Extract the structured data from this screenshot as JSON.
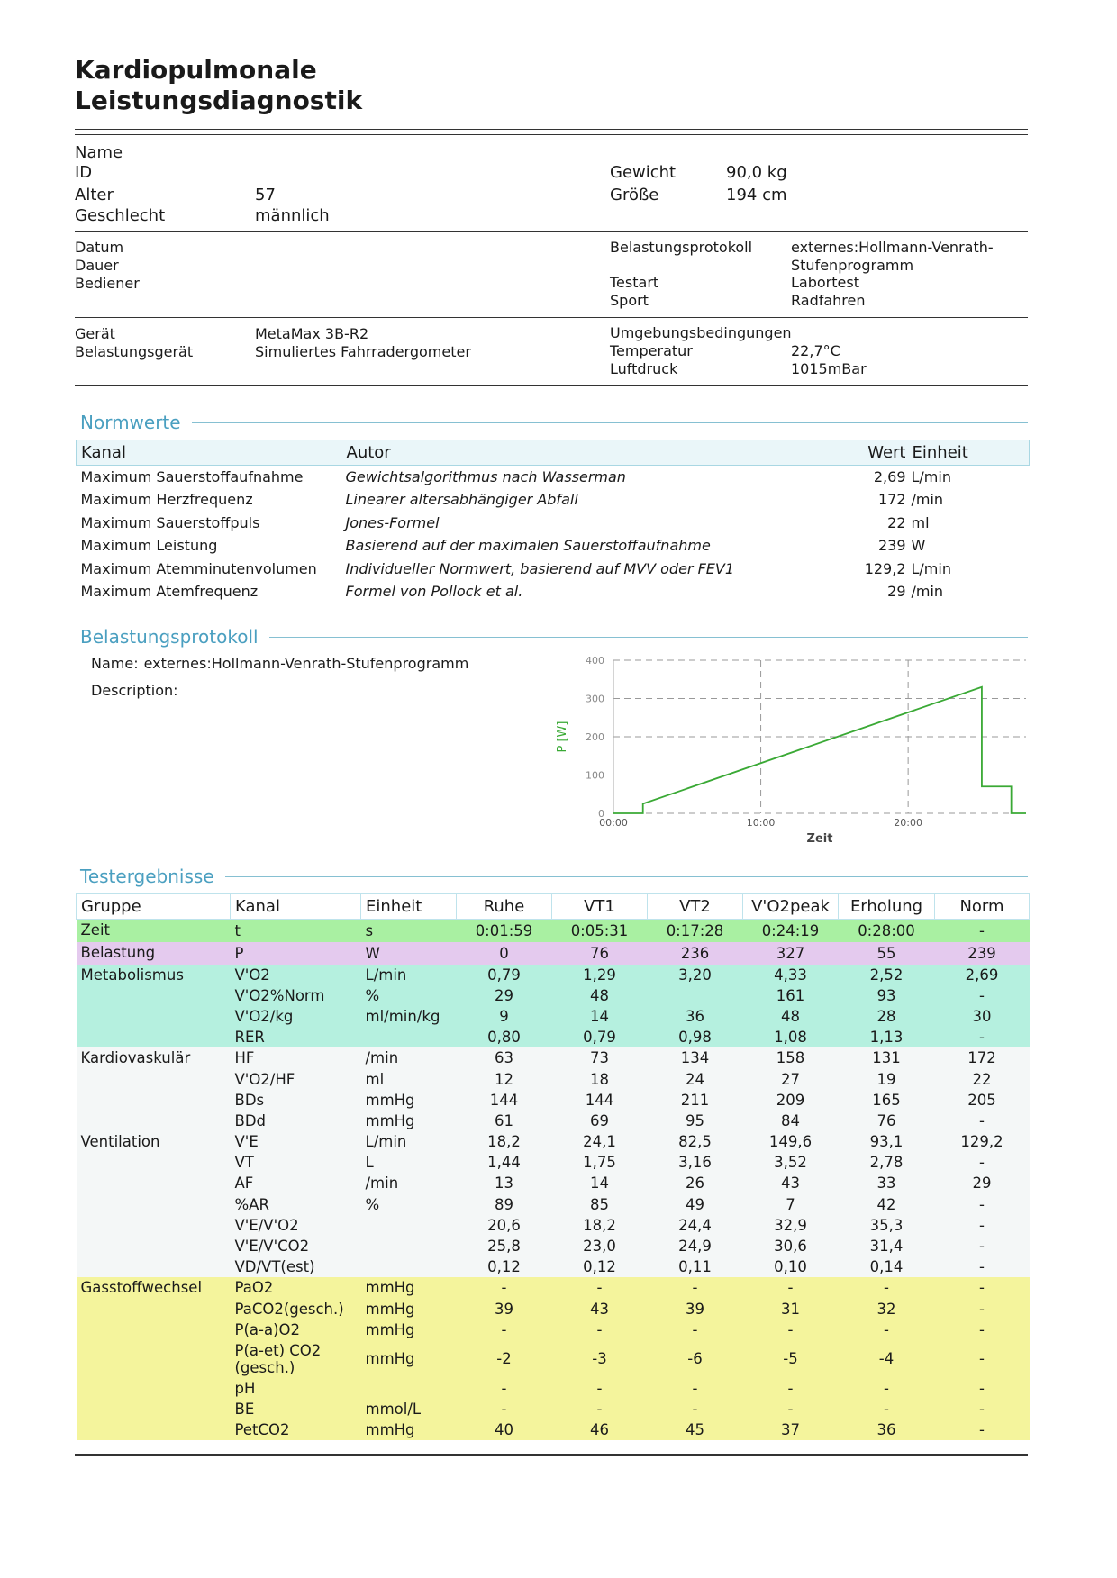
{
  "header": {
    "title_lines": [
      "Kardiopulmonale",
      "Leistungsdiagnostik"
    ]
  },
  "patient": {
    "left": [
      {
        "label": "Name"
      },
      {
        "label": "ID"
      },
      {
        "label": "Alter",
        "value": "57"
      },
      {
        "label": "Geschlecht",
        "value": "männlich"
      }
    ],
    "right": [
      {
        "label": "Gewicht",
        "value": "90,0 kg"
      },
      {
        "label": "Größe",
        "value": "194 cm"
      }
    ]
  },
  "session": {
    "left": [
      {
        "label": "Datum"
      },
      {
        "label": "Dauer"
      },
      {
        "label": "Bediener"
      }
    ],
    "right": [
      {
        "label": "Belastungsprotokoll",
        "value": "externes:Hollmann-Venrath-Stufenprogramm"
      },
      {
        "label": "Testart",
        "value": "Labortest"
      },
      {
        "label": "Sport",
        "value": "Radfahren"
      }
    ]
  },
  "device": {
    "left": [
      {
        "label": "Gerät",
        "value": "MetaMax 3B-R2"
      },
      {
        "label": "Belastungsgerät",
        "value": "Simuliertes Fahrradergometer"
      }
    ],
    "env_title": "Umgebungsbedingungen",
    "right": [
      {
        "label": "Temperatur",
        "value": "22,7°C"
      },
      {
        "label": "Luftdruck",
        "value": "1015mBar"
      }
    ]
  },
  "normwerte": {
    "title": "Normwerte",
    "header": [
      "Kanal",
      "Autor",
      "Wert",
      "Einheit"
    ],
    "rows": [
      [
        "Maximum Sauerstoffaufnahme",
        "Gewichtsalgorithmus nach Wasserman",
        "2,69",
        "L/min"
      ],
      [
        "Maximum Herzfrequenz",
        "Linearer altersabhängiger Abfall",
        "172",
        "/min"
      ],
      [
        "Maximum Sauerstoffpuls",
        "Jones-Formel",
        "22",
        "ml"
      ],
      [
        "Maximum Leistung",
        "Basierend auf der maximalen Sauerstoffaufnahme",
        "239",
        "W"
      ],
      [
        "Maximum Atemminutenvolumen",
        "Individueller Normwert, basierend auf MVV oder FEV1",
        "129,2",
        "L/min"
      ],
      [
        "Maximum Atemfrequenz",
        "Formel von Pollock et al.",
        "29",
        "/min"
      ]
    ]
  },
  "protocol": {
    "title": "Belastungsprotokoll",
    "name_label": "Name:",
    "name": "externes:Hollmann-Venrath-Stufenprogramm",
    "description_label": "Description:"
  },
  "chart_data": {
    "type": "line",
    "x_label": "Zeit",
    "y_label": "P [W]",
    "x": [
      0,
      2,
      2,
      25,
      25,
      27,
      27,
      28
    ],
    "values": [
      0,
      0,
      25,
      330,
      70,
      70,
      0,
      0
    ],
    "color": "#3aa935",
    "xlim": [
      0,
      28
    ],
    "ylim": [
      0,
      400
    ],
    "xticks": [
      {
        "value": 0,
        "label": "00:00"
      },
      {
        "value": 10,
        "label": "10:00"
      },
      {
        "value": 20,
        "label": "20:00"
      }
    ],
    "yticks": [
      0,
      100,
      200,
      300,
      400
    ],
    "grid": true
  },
  "results": {
    "title": "Testergebnisse",
    "header": [
      "Gruppe",
      "Kanal",
      "Einheit",
      "Ruhe",
      "VT1",
      "VT2",
      "V'O2peak",
      "Erholung",
      "Norm"
    ],
    "groups": [
      {
        "name": "Zeit",
        "rows": [
          [
            "t",
            "s",
            "0:01:59",
            "0:05:31",
            "0:17:28",
            "0:24:19",
            "0:28:00",
            "-"
          ]
        ]
      },
      {
        "name": "Belastung",
        "rows": [
          [
            "P",
            "W",
            "0",
            "76",
            "236",
            "327",
            "55",
            "239"
          ]
        ]
      },
      {
        "name": "Metabolismus",
        "rows": [
          [
            "V'O2",
            "L/min",
            "0,79",
            "1,29",
            "3,20",
            "4,33",
            "2,52",
            "2,69"
          ],
          [
            "V'O2%Norm",
            "%",
            "29",
            "48",
            null,
            "161",
            "93",
            "-"
          ],
          [
            "V'O2/kg",
            "ml/min/kg",
            "9",
            "14",
            "36",
            "48",
            "28",
            "30"
          ],
          [
            "RER",
            null,
            "0,80",
            "0,79",
            "0,98",
            "1,08",
            "1,13",
            "-"
          ]
        ]
      },
      {
        "name": "Kardiovaskulär",
        "rows": [
          [
            "HF",
            "/min",
            "63",
            "73",
            "134",
            "158",
            "131",
            "172"
          ],
          [
            "V'O2/HF",
            "ml",
            "12",
            "18",
            "24",
            "27",
            "19",
            "22"
          ],
          [
            "BDs",
            "mmHg",
            "144",
            "144",
            "211",
            "209",
            "165",
            "205"
          ],
          [
            "BDd",
            "mmHg",
            "61",
            "69",
            "95",
            "84",
            "76",
            "-"
          ]
        ]
      },
      {
        "name": "Ventilation",
        "rows": [
          [
            "V'E",
            "L/min",
            "18,2",
            "24,1",
            "82,5",
            "149,6",
            "93,1",
            "129,2"
          ],
          [
            "VT",
            "L",
            "1,44",
            "1,75",
            "3,16",
            "3,52",
            "2,78",
            "-"
          ],
          [
            "AF",
            "/min",
            "13",
            "14",
            "26",
            "43",
            "33",
            "29"
          ],
          [
            "%AR",
            "%",
            "89",
            "85",
            "49",
            "7",
            "42",
            "-"
          ],
          [
            "V'E/V'O2",
            null,
            "20,6",
            "18,2",
            "24,4",
            "32,9",
            "35,3",
            "-"
          ],
          [
            "V'E/V'CO2",
            null,
            "25,8",
            "23,0",
            "24,9",
            "30,6",
            "31,4",
            "-"
          ],
          [
            "VD/VT(est)",
            null,
            "0,12",
            "0,12",
            "0,11",
            "0,10",
            "0,14",
            "-"
          ]
        ]
      },
      {
        "name": "Gasstoffwechsel",
        "rows": [
          [
            "PaO2",
            "mmHg",
            "-",
            "-",
            "-",
            "-",
            "-",
            "-"
          ],
          [
            "PaCO2(gesch.)",
            "mmHg",
            "39",
            "43",
            "39",
            "31",
            "32",
            "-"
          ],
          [
            "P(a-a)O2",
            "mmHg",
            "-",
            "-",
            "-",
            "-",
            "-",
            "-"
          ],
          [
            "P(a-et) CO2 (gesch.)",
            "mmHg",
            "-2",
            "-3",
            "-6",
            "-5",
            "-4",
            "-"
          ],
          [
            "pH",
            null,
            "-",
            "-",
            "-",
            "-",
            "-",
            "-"
          ],
          [
            "BE",
            "mmol/L",
            "-",
            "-",
            "-",
            "-",
            "-",
            "-"
          ],
          [
            "PetCO2",
            "mmHg",
            "40",
            "46",
            "45",
            "37",
            "36",
            "-"
          ]
        ]
      }
    ]
  }
}
